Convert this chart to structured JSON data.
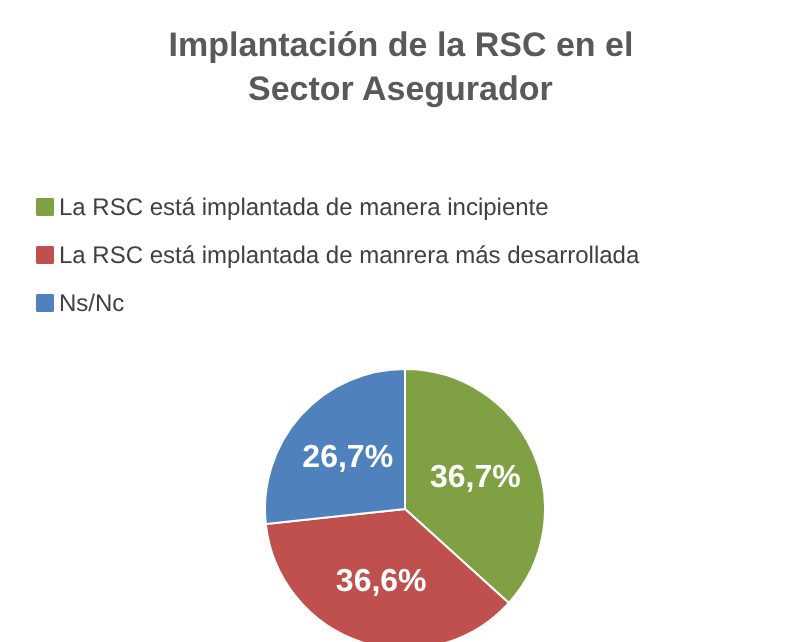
{
  "chart_data": {
    "type": "pie",
    "title": "Implantación de la RSC en el Sector Asegurador",
    "categories": [
      "La RSC está implantada de manera incipiente",
      "La RSC está implantada de manrera más desarrollada",
      "Ns/Nc"
    ],
    "values": [
      36.7,
      36.6,
      26.7
    ],
    "colors": [
      "#7fa043",
      "#c0504d",
      "#4f81bd"
    ],
    "value_labels": [
      "36,7%",
      "36,6%",
      "26,7%"
    ],
    "legend": "top"
  }
}
